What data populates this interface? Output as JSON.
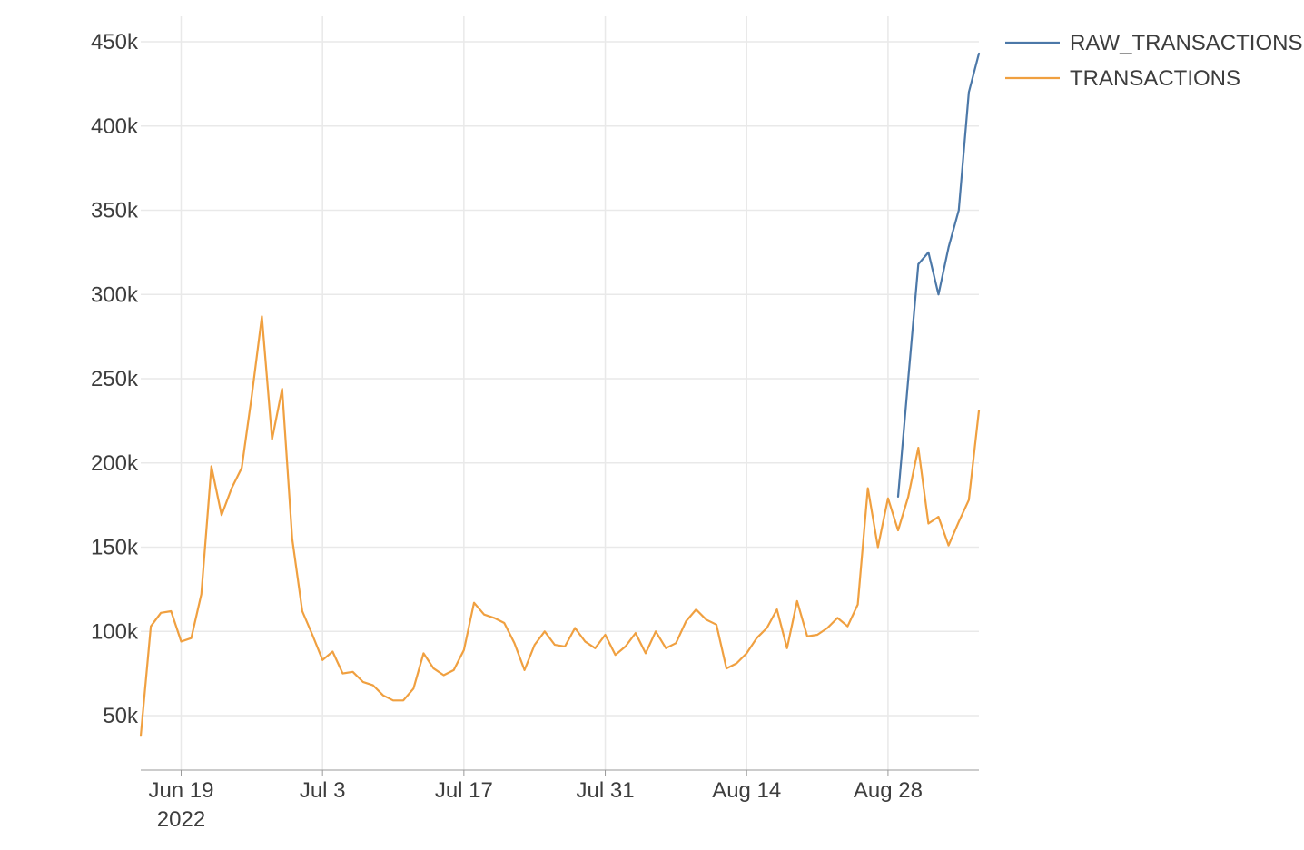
{
  "chart_data": {
    "type": "line",
    "title": "",
    "xlabel": "",
    "ylabel": "",
    "x_start": "2022-06-15",
    "x_range": [
      "2022-06-15",
      "2022-09-07"
    ],
    "x_ticks": [
      {
        "date": "2022-06-19",
        "label": "Jun 19",
        "sublabel": "2022"
      },
      {
        "date": "2022-07-03",
        "label": "Jul 3",
        "sublabel": ""
      },
      {
        "date": "2022-07-17",
        "label": "Jul 17",
        "sublabel": ""
      },
      {
        "date": "2022-07-31",
        "label": "Jul 31",
        "sublabel": ""
      },
      {
        "date": "2022-08-14",
        "label": "Aug 14",
        "sublabel": ""
      },
      {
        "date": "2022-08-28",
        "label": "Aug 28",
        "sublabel": ""
      }
    ],
    "ylim": [
      20000,
      470000
    ],
    "y_ticks": [
      {
        "value": 50000,
        "label": "50k"
      },
      {
        "value": 100000,
        "label": "100k"
      },
      {
        "value": 150000,
        "label": "150k"
      },
      {
        "value": 200000,
        "label": "200k"
      },
      {
        "value": 250000,
        "label": "250k"
      },
      {
        "value": 300000,
        "label": "300k"
      },
      {
        "value": 350000,
        "label": "350k"
      },
      {
        "value": 400000,
        "label": "400k"
      },
      {
        "value": 450000,
        "label": "450k"
      }
    ],
    "grid": true,
    "legend_position": "top-right",
    "series": [
      {
        "name": "RAW_TRANSACTIONS",
        "color": "#4c78a8",
        "x": [
          "2022-08-29",
          "2022-08-30",
          "2022-08-31",
          "2022-09-01",
          "2022-09-02",
          "2022-09-03",
          "2022-09-04",
          "2022-09-05",
          "2022-09-06"
        ],
        "values": [
          180000,
          250000,
          318000,
          325000,
          300000,
          328000,
          350000,
          420000,
          443000
        ]
      },
      {
        "name": "TRANSACTIONS",
        "color": "#f0a040",
        "x": [
          "2022-06-15",
          "2022-06-16",
          "2022-06-17",
          "2022-06-18",
          "2022-06-19",
          "2022-06-20",
          "2022-06-21",
          "2022-06-22",
          "2022-06-23",
          "2022-06-24",
          "2022-06-25",
          "2022-06-26",
          "2022-06-27",
          "2022-06-28",
          "2022-06-29",
          "2022-06-30",
          "2022-07-01",
          "2022-07-02",
          "2022-07-03",
          "2022-07-04",
          "2022-07-05",
          "2022-07-06",
          "2022-07-07",
          "2022-07-08",
          "2022-07-09",
          "2022-07-10",
          "2022-07-11",
          "2022-07-12",
          "2022-07-13",
          "2022-07-14",
          "2022-07-15",
          "2022-07-16",
          "2022-07-17",
          "2022-07-18",
          "2022-07-19",
          "2022-07-20",
          "2022-07-21",
          "2022-07-22",
          "2022-07-23",
          "2022-07-24",
          "2022-07-25",
          "2022-07-26",
          "2022-07-27",
          "2022-07-28",
          "2022-07-29",
          "2022-07-30",
          "2022-07-31",
          "2022-08-01",
          "2022-08-02",
          "2022-08-03",
          "2022-08-04",
          "2022-08-05",
          "2022-08-06",
          "2022-08-07",
          "2022-08-08",
          "2022-08-09",
          "2022-08-10",
          "2022-08-11",
          "2022-08-12",
          "2022-08-13",
          "2022-08-14",
          "2022-08-15",
          "2022-08-16",
          "2022-08-17",
          "2022-08-18",
          "2022-08-19",
          "2022-08-20",
          "2022-08-21",
          "2022-08-22",
          "2022-08-23",
          "2022-08-24",
          "2022-08-25",
          "2022-08-26",
          "2022-08-27",
          "2022-08-28",
          "2022-08-29",
          "2022-08-30",
          "2022-08-31",
          "2022-09-01",
          "2022-09-02",
          "2022-09-03",
          "2022-09-04",
          "2022-09-05",
          "2022-09-06"
        ],
        "values": [
          38000,
          103000,
          111000,
          112000,
          94000,
          96000,
          122000,
          198000,
          169000,
          185000,
          197000,
          240000,
          287000,
          214000,
          244000,
          155000,
          112000,
          98000,
          83000,
          88000,
          75000,
          76000,
          70000,
          68000,
          62000,
          59000,
          59000,
          66000,
          87000,
          78000,
          74000,
          77000,
          89000,
          117000,
          110000,
          108000,
          105000,
          93000,
          77000,
          92000,
          100000,
          92000,
          91000,
          102000,
          94000,
          90000,
          98000,
          86000,
          91000,
          99000,
          87000,
          100000,
          90000,
          93000,
          106000,
          113000,
          107000,
          104000,
          78000,
          81000,
          87000,
          96000,
          102000,
          113000,
          90000,
          118000,
          97000,
          98000,
          102000,
          108000,
          103000,
          116000,
          185000,
          150000,
          179000,
          160000,
          180000,
          209000,
          164000,
          168000,
          151000,
          165000,
          178000,
          231000
        ]
      }
    ]
  }
}
